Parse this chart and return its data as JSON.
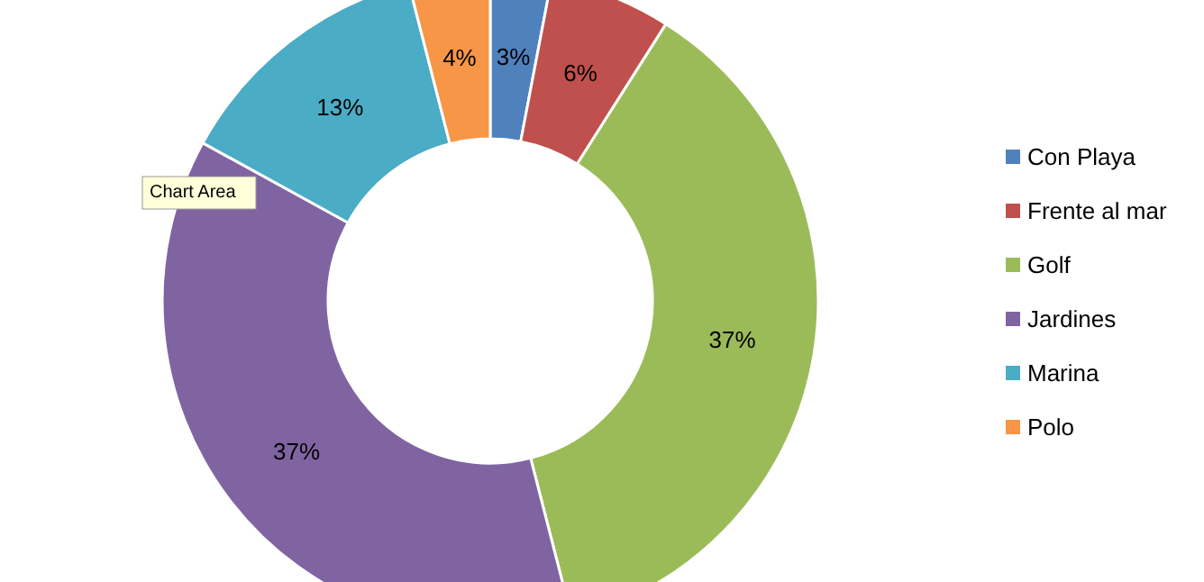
{
  "chart_data": {
    "type": "donut",
    "categories": [
      "Con Playa",
      "Frente al mar",
      "Golf",
      "Jardines",
      "Marina",
      "Polo"
    ],
    "values": [
      3,
      6,
      37,
      37,
      13,
      4
    ],
    "colors": [
      "#4f81bd",
      "#c0504d",
      "#9bbb59",
      "#8064a2",
      "#4bacc6",
      "#f79646"
    ],
    "value_labels": [
      "3%",
      "6%",
      "37%",
      "37%",
      "13%",
      "4%"
    ],
    "legend": "right",
    "annotations": [
      "Chart Area"
    ]
  }
}
